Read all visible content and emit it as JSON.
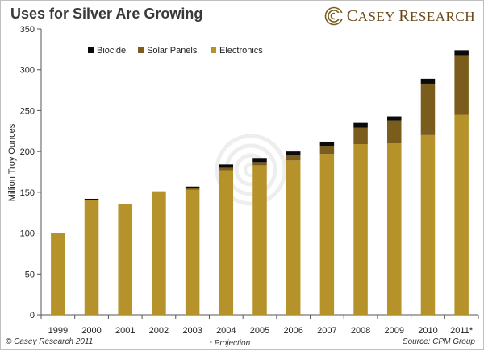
{
  "title": "Uses for Silver Are Growing",
  "logo": {
    "text_initial": "C",
    "text_rest": "ASEY ",
    "text_initial2": "R",
    "text_rest2": "ESEARCH"
  },
  "footer": {
    "copyright": "© Casey Research 2011",
    "note": "* Projection",
    "source": "Source: CPM Group"
  },
  "colors": {
    "electronics": "#b5922a",
    "solar": "#7a5c1c",
    "biocide": "#0a0a0a",
    "axis": "#555555"
  },
  "chart_data": {
    "type": "bar",
    "stacked": true,
    "title": "Uses for Silver Are Growing",
    "xlabel": "",
    "ylabel": "Million Troy Ounces",
    "ylim": [
      0,
      350
    ],
    "yticks": [
      0,
      50,
      100,
      150,
      200,
      250,
      300,
      350
    ],
    "grid": false,
    "legend_position": "top-left",
    "categories": [
      "1999",
      "2000",
      "2001",
      "2002",
      "2003",
      "2004",
      "2005",
      "2006",
      "2007",
      "2008",
      "2009",
      "2010",
      "2011*"
    ],
    "series": [
      {
        "name": "Electronics",
        "values": [
          100,
          141,
          136,
          150,
          153,
          177,
          183,
          189,
          197,
          209,
          210,
          220,
          245
        ]
      },
      {
        "name": "Solar Panels",
        "values": [
          0,
          0,
          0,
          0,
          2,
          3,
          4,
          6,
          10,
          20,
          28,
          63,
          73
        ]
      },
      {
        "name": "Biocide",
        "values": [
          0,
          1,
          0,
          1,
          2,
          4,
          5,
          5,
          5,
          6,
          5,
          6,
          6
        ]
      }
    ],
    "legend_order": [
      "Biocide",
      "Solar Panels",
      "Electronics"
    ]
  }
}
